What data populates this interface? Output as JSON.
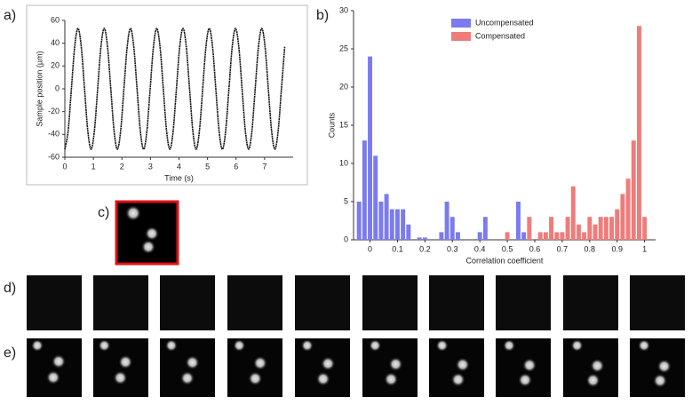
{
  "panel_labels": [
    "a)",
    "b)",
    "c)",
    "d)",
    "e)"
  ],
  "chart_data": [
    {
      "type": "line",
      "xlabel": "Time (s)",
      "ylabel": "Sample position (µm)",
      "color": "#111111",
      "x": [
        0,
        0.115,
        0.23,
        0.345,
        0.46,
        0.575,
        0.69,
        0.805,
        0.92,
        1.035,
        1.15,
        1.265,
        1.38,
        1.495,
        1.61,
        1.725,
        1.84,
        1.955,
        2.07,
        2.185,
        2.3,
        2.415,
        2.53,
        2.645,
        2.76,
        2.875,
        2.99,
        3.105,
        3.22,
        3.335,
        3.45,
        3.565,
        3.68,
        3.795,
        3.91,
        4.025,
        4.14,
        4.255,
        4.37,
        4.485,
        4.6,
        4.715,
        4.83,
        4.945,
        5.06,
        5.175,
        5.29,
        5.405,
        5.52,
        5.635,
        5.75,
        5.865,
        5.98,
        6.095,
        6.21,
        6.325,
        6.44,
        6.555,
        6.67,
        6.785,
        6.9,
        7.015,
        7.13,
        7.245,
        7.36,
        7.475,
        7.59,
        7.705
      ],
      "values": [
        -53,
        -37,
        0,
        37,
        53,
        37,
        0,
        -37,
        -53,
        -37,
        0,
        37,
        53,
        37,
        0,
        -37,
        -53,
        -37,
        0,
        37,
        53,
        37,
        0,
        -37,
        -53,
        -37,
        0,
        37,
        53,
        37,
        0,
        -37,
        -53,
        -37,
        0,
        37,
        53,
        37,
        0,
        -37,
        -53,
        -37,
        0,
        37,
        53,
        37,
        0,
        -37,
        -53,
        -37,
        0,
        37,
        53,
        37,
        0,
        -37,
        -53,
        -37,
        0,
        37,
        53,
        37,
        0,
        -37,
        -53,
        -37,
        0,
        37
      ],
      "xlim": [
        0,
        8
      ],
      "xticks": [
        0,
        1,
        2,
        3,
        4,
        5,
        6,
        7
      ],
      "ylim": [
        -60,
        60
      ],
      "yticks": [
        -60,
        -40,
        -20,
        0,
        20,
        40,
        60
      ]
    },
    {
      "type": "bar",
      "xlabel": "Correlation coefficient",
      "ylabel": "Counts",
      "legend": "top",
      "series": [
        {
          "name": "Uncompensated",
          "color": "#7b7bf0",
          "x": [
            -0.04,
            -0.02,
            0,
            0.02,
            0.04,
            0.06,
            0.08,
            0.1,
            0.12,
            0.14,
            0.18,
            0.2,
            0.26,
            0.28,
            0.3,
            0.32,
            0.4,
            0.42,
            0.54,
            0.56
          ],
          "values": [
            5,
            13,
            24,
            11,
            5,
            6,
            4,
            4,
            4,
            2,
            0.3,
            0.3,
            1,
            5,
            3,
            1,
            1,
            3,
            5,
            1
          ]
        },
        {
          "name": "Compensated",
          "color": "#f07b7b",
          "x": [
            0.5,
            0.58,
            0.62,
            0.64,
            0.66,
            0.68,
            0.7,
            0.72,
            0.74,
            0.76,
            0.78,
            0.8,
            0.82,
            0.84,
            0.86,
            0.88,
            0.9,
            0.92,
            0.94,
            0.96,
            0.98,
            1.0
          ],
          "values": [
            1,
            3,
            1,
            1,
            3,
            1,
            1,
            3,
            7,
            2,
            1,
            3,
            2,
            3,
            3,
            3,
            4,
            6,
            8,
            13,
            28,
            3
          ]
        }
      ],
      "bar_width": 0.016,
      "xlim": [
        -0.06,
        1.04
      ],
      "xticks": [
        0,
        0.1,
        0.2,
        0.3,
        0.4,
        0.5,
        0.6,
        0.7,
        0.8,
        0.9,
        1
      ],
      "ylim": [
        0,
        30
      ],
      "yticks": [
        0,
        5,
        10,
        15,
        20,
        25,
        30
      ]
    }
  ]
}
